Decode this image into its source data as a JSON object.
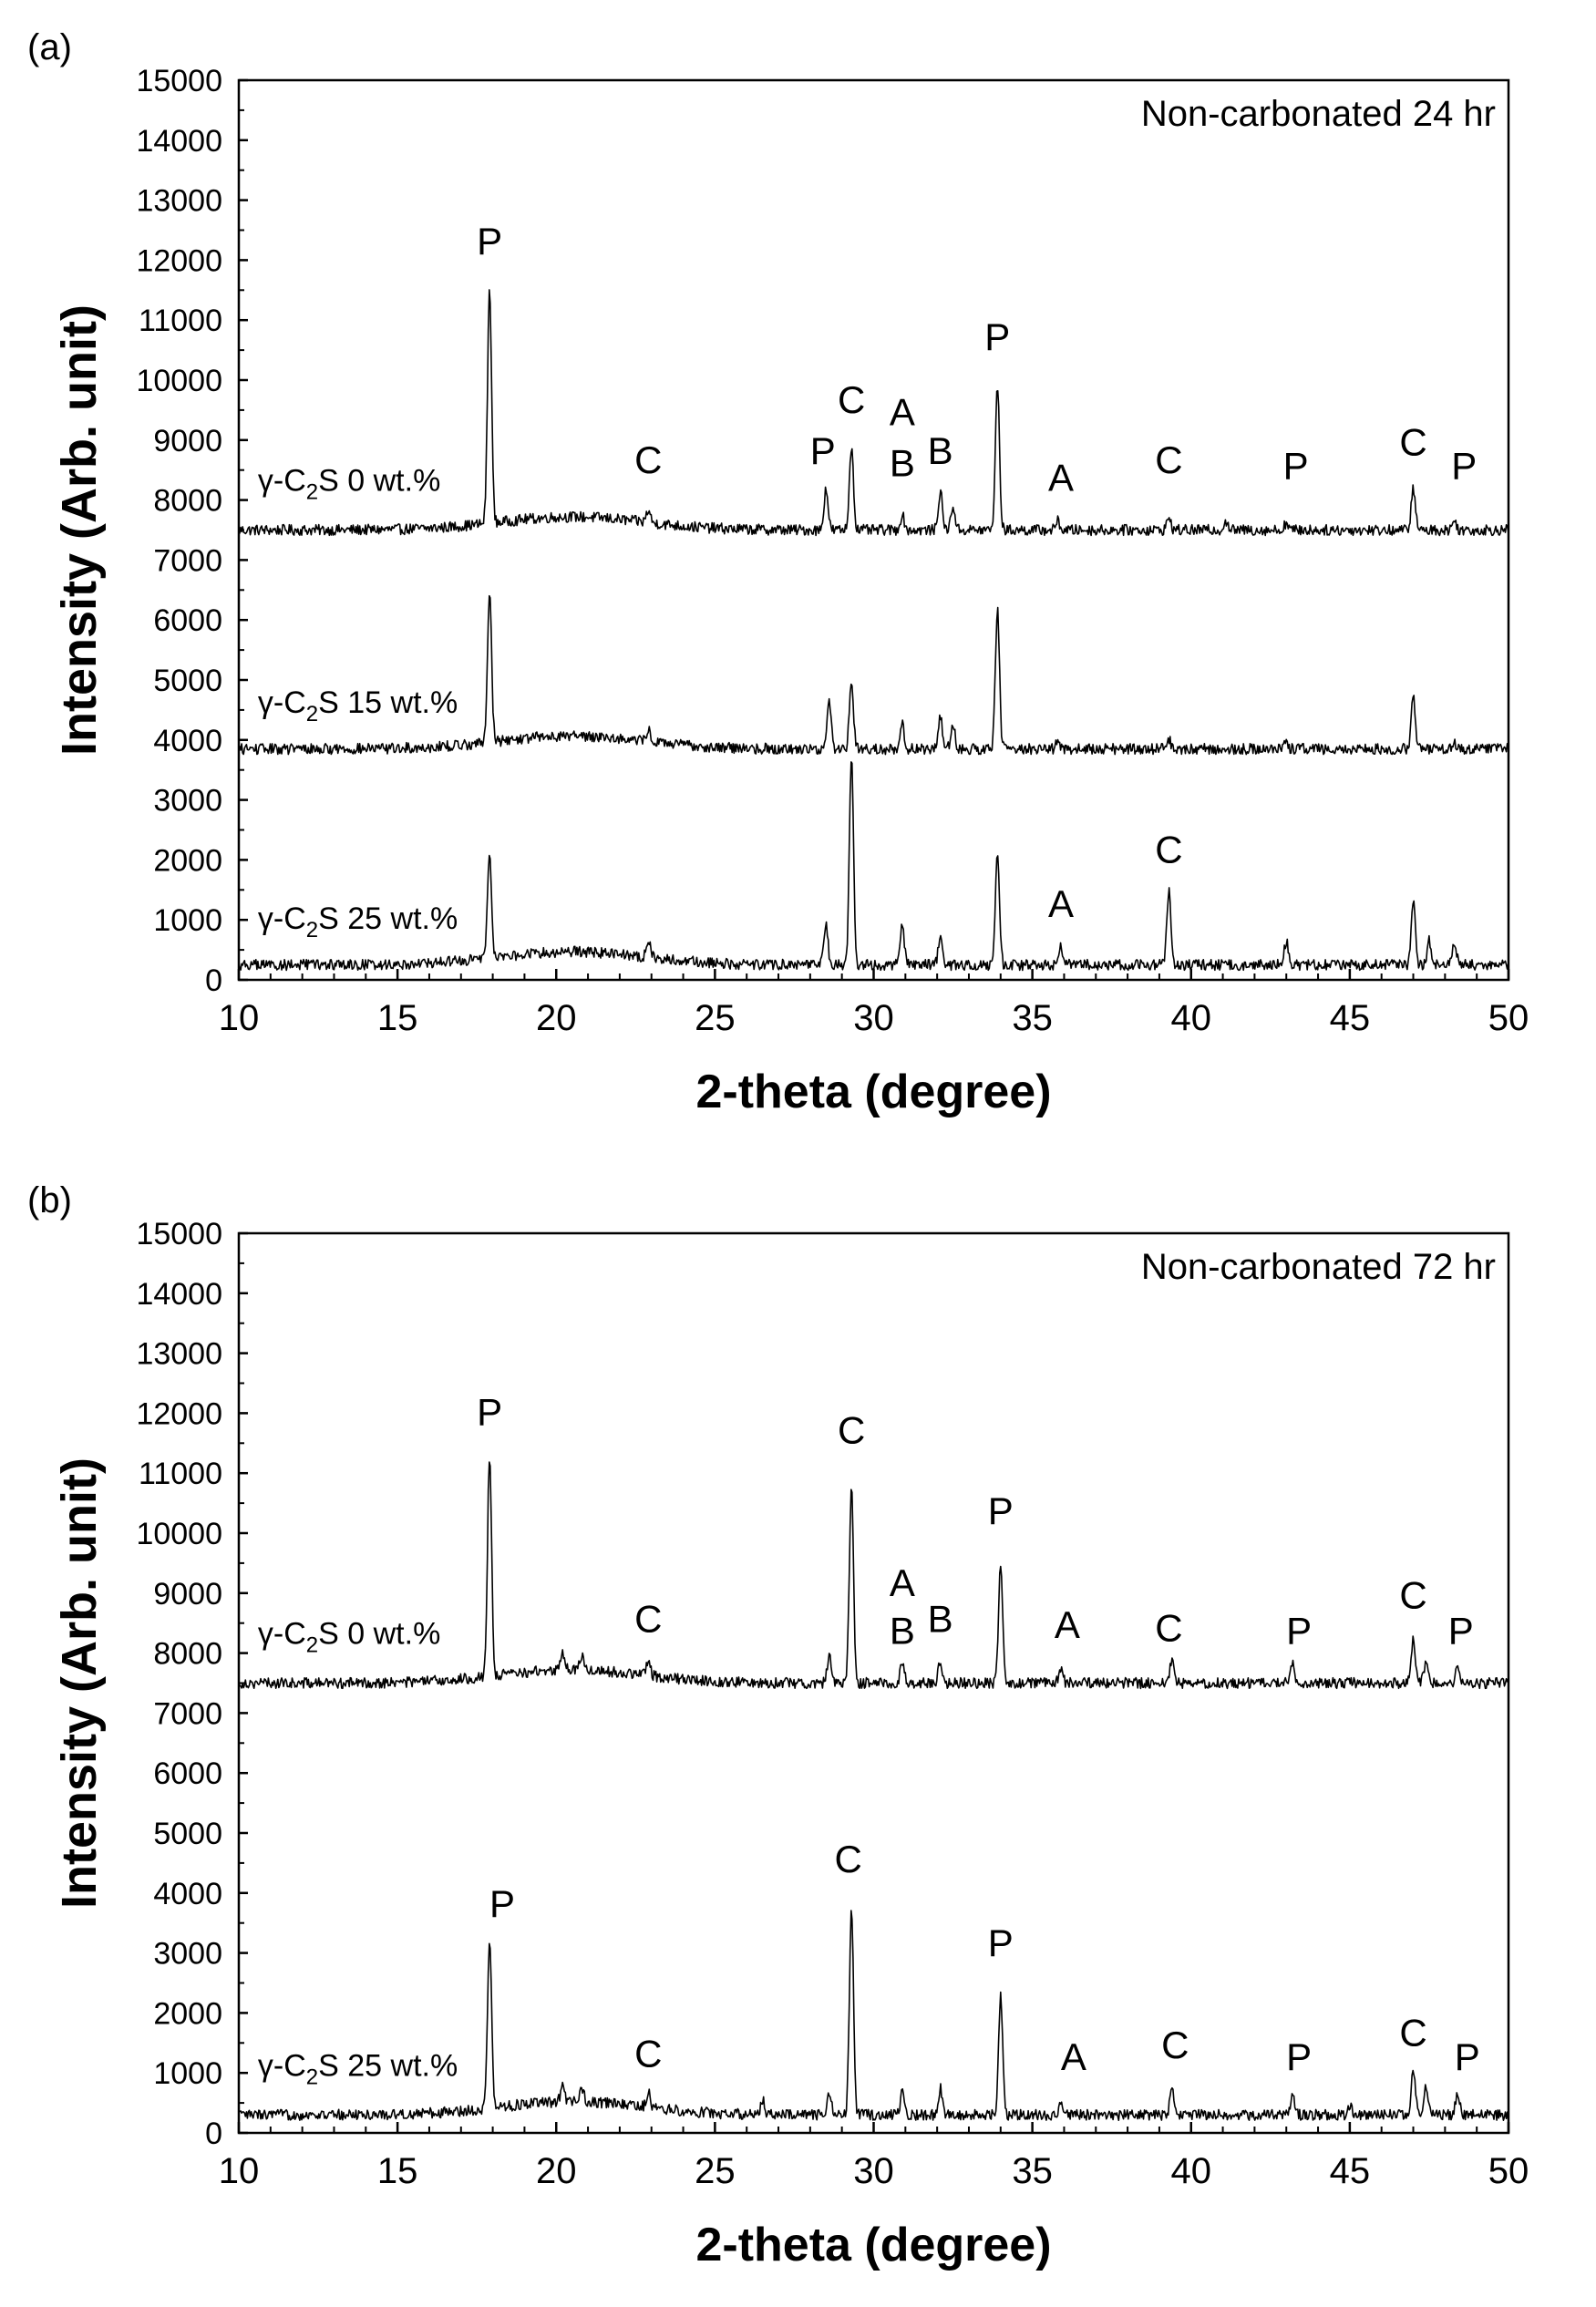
{
  "chart_data": [
    {
      "panel_label": "(a)",
      "type": "line",
      "title": "Non-carbonated 24 hr",
      "xlabel": "2-theta (degree)",
      "ylabel": "Intensity (Arb. unit)",
      "xlim": [
        10,
        50
      ],
      "ylim": [
        0,
        15000
      ],
      "xticks": [
        10,
        15,
        20,
        25,
        30,
        35,
        40,
        45,
        50
      ],
      "yticks": [
        0,
        1000,
        2000,
        3000,
        4000,
        5000,
        6000,
        7000,
        8000,
        9000,
        10000,
        11000,
        12000,
        13000,
        14000,
        15000
      ],
      "grid": false,
      "series": [
        {
          "name": "γ-C2S 0 wt.%",
          "label_parts": [
            "γ-C",
            "2",
            "S 0 wt.%"
          ],
          "label_at": [
            10.6,
            8150
          ],
          "baseline": 7500,
          "peaks": [
            [
              17.9,
              11400
            ],
            [
              22.9,
              7700
            ],
            [
              28.5,
              8200
            ],
            [
              29.3,
              8900
            ],
            [
              30.9,
              7750
            ],
            [
              32.1,
              8150
            ],
            [
              32.5,
              7900
            ],
            [
              33.9,
              9900
            ],
            [
              35.8,
              7650
            ],
            [
              39.3,
              7700
            ],
            [
              41.1,
              7650
            ],
            [
              43.0,
              7620
            ],
            [
              47.0,
              8200
            ],
            [
              48.3,
              7650
            ]
          ]
        },
        {
          "name": "γ-C2S 15 wt.%",
          "label_parts": [
            "γ-C",
            "2",
            "S 15 wt.%"
          ],
          "label_at": [
            10.6,
            4450
          ],
          "baseline": 3850,
          "peaks": [
            [
              17.9,
              6400
            ],
            [
              22.9,
              4050
            ],
            [
              28.6,
              4650
            ],
            [
              29.3,
              5000
            ],
            [
              30.9,
              4250
            ],
            [
              32.1,
              4400
            ],
            [
              32.5,
              4300
            ],
            [
              33.9,
              6200
            ],
            [
              35.8,
              3950
            ],
            [
              39.3,
              4000
            ],
            [
              43.0,
              3950
            ],
            [
              47.0,
              4700
            ],
            [
              48.3,
              3950
            ]
          ]
        },
        {
          "name": "γ-C2S 25 wt.%",
          "label_parts": [
            "γ-C",
            "2",
            "S 25 wt.%"
          ],
          "label_at": [
            10.6,
            850
          ],
          "baseline": 250,
          "peaks": [
            [
              17.9,
              2000
            ],
            [
              22.9,
              550
            ],
            [
              28.5,
              900
            ],
            [
              29.3,
              3700
            ],
            [
              30.9,
              900
            ],
            [
              32.1,
              700
            ],
            [
              33.9,
              2150
            ],
            [
              35.9,
              550
            ],
            [
              39.3,
              1500
            ],
            [
              43.0,
              650
            ],
            [
              47.0,
              1300
            ],
            [
              47.5,
              650
            ],
            [
              48.3,
              600
            ]
          ]
        }
      ],
      "annotations": [
        {
          "text": "P",
          "x": 17.9,
          "y": 12100
        },
        {
          "text": "C",
          "x": 22.9,
          "y": 8450
        },
        {
          "text": "P",
          "x": 28.4,
          "y": 8600
        },
        {
          "text": "C",
          "x": 29.3,
          "y": 9450
        },
        {
          "text": "A",
          "x": 30.9,
          "y": 9250
        },
        {
          "text": "B",
          "x": 30.9,
          "y": 8400
        },
        {
          "text": "B",
          "x": 32.1,
          "y": 8600
        },
        {
          "text": "P",
          "x": 33.9,
          "y": 10500
        },
        {
          "text": "A",
          "x": 35.9,
          "y": 8150
        },
        {
          "text": "C",
          "x": 39.3,
          "y": 8450
        },
        {
          "text": "P",
          "x": 43.3,
          "y": 8350
        },
        {
          "text": "C",
          "x": 47.0,
          "y": 8750
        },
        {
          "text": "P",
          "x": 48.6,
          "y": 8350
        },
        {
          "text": "A",
          "x": 35.9,
          "y": 1050
        },
        {
          "text": "C",
          "x": 39.3,
          "y": 1950
        }
      ]
    },
    {
      "panel_label": "(b)",
      "type": "line",
      "title": "Non-carbonated 72 hr",
      "xlabel": "2-theta (degree)",
      "ylabel": "Intensity (Arb. unit)",
      "xlim": [
        10,
        50
      ],
      "ylim": [
        0,
        15000
      ],
      "xticks": [
        10,
        15,
        20,
        25,
        30,
        35,
        40,
        45,
        50
      ],
      "yticks": [
        0,
        1000,
        2000,
        3000,
        4000,
        5000,
        6000,
        7000,
        8000,
        9000,
        10000,
        11000,
        12000,
        13000,
        14000,
        15000
      ],
      "grid": false,
      "series": [
        {
          "name": "γ-C2S 0 wt.%",
          "label_parts": [
            "γ-C",
            "2",
            "S 0 wt.%"
          ],
          "label_at": [
            10.6,
            8150
          ],
          "baseline": 7500,
          "peaks": [
            [
              17.9,
              11200
            ],
            [
              20.2,
              7800
            ],
            [
              20.8,
              7750
            ],
            [
              22.9,
              7750
            ],
            [
              28.6,
              7950
            ],
            [
              29.3,
              10800
            ],
            [
              30.9,
              7800
            ],
            [
              32.1,
              7850
            ],
            [
              34.0,
              9500
            ],
            [
              35.9,
              7700
            ],
            [
              39.4,
              7900
            ],
            [
              43.2,
              7800
            ],
            [
              47.0,
              8250
            ],
            [
              47.4,
              7850
            ],
            [
              48.4,
              7750
            ]
          ]
        },
        {
          "name": "γ-C2S 25 wt.%",
          "label_parts": [
            "γ-C",
            "2",
            "S 25 wt.%"
          ],
          "label_at": [
            10.6,
            950
          ],
          "baseline": 300,
          "peaks": [
            [
              17.9,
              3100
            ],
            [
              20.2,
              550
            ],
            [
              20.8,
              550
            ],
            [
              22.9,
              550
            ],
            [
              26.5,
              550
            ],
            [
              28.6,
              700
            ],
            [
              29.3,
              3750
            ],
            [
              30.9,
              650
            ],
            [
              32.1,
              750
            ],
            [
              34.0,
              2300
            ],
            [
              35.9,
              550
            ],
            [
              39.4,
              800
            ],
            [
              43.2,
              650
            ],
            [
              45.0,
              450
            ],
            [
              47.0,
              1050
            ],
            [
              47.4,
              800
            ],
            [
              48.4,
              650
            ]
          ]
        }
      ],
      "annotations": [
        {
          "text": "P",
          "x": 17.9,
          "y": 11800
        },
        {
          "text": "C",
          "x": 22.9,
          "y": 8350
        },
        {
          "text": "C",
          "x": 29.3,
          "y": 11500
        },
        {
          "text": "A",
          "x": 30.9,
          "y": 8950
        },
        {
          "text": "B",
          "x": 30.9,
          "y": 8150
        },
        {
          "text": "B",
          "x": 32.1,
          "y": 8350
        },
        {
          "text": "P",
          "x": 34.0,
          "y": 10150
        },
        {
          "text": "A",
          "x": 36.1,
          "y": 8250
        },
        {
          "text": "C",
          "x": 39.3,
          "y": 8200
        },
        {
          "text": "P",
          "x": 43.4,
          "y": 8150
        },
        {
          "text": "C",
          "x": 47.0,
          "y": 8750
        },
        {
          "text": "P",
          "x": 48.5,
          "y": 8150
        },
        {
          "text": "P",
          "x": 18.3,
          "y": 3600
        },
        {
          "text": "C",
          "x": 22.9,
          "y": 1100
        },
        {
          "text": "C",
          "x": 29.2,
          "y": 4350
        },
        {
          "text": "P",
          "x": 34.0,
          "y": 2950
        },
        {
          "text": "A",
          "x": 36.3,
          "y": 1050
        },
        {
          "text": "C",
          "x": 39.5,
          "y": 1250
        },
        {
          "text": "P",
          "x": 43.4,
          "y": 1050
        },
        {
          "text": "C",
          "x": 47.0,
          "y": 1450
        },
        {
          "text": "P",
          "x": 48.7,
          "y": 1050
        }
      ]
    }
  ]
}
